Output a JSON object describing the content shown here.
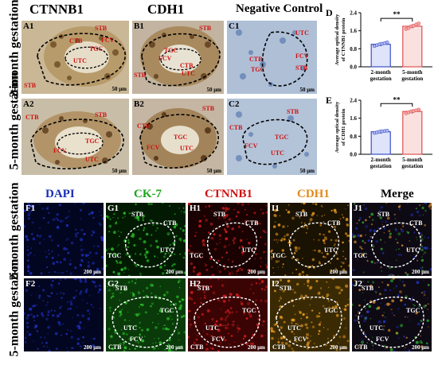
{
  "top_columns": [
    "CTNNB1",
    "CDH1",
    "Negative Control"
  ],
  "top_rows": [
    "2-month gestation",
    "5-month gestation"
  ],
  "top_panels": [
    {
      "id": "A1",
      "labels": [
        "STB",
        "FCV",
        "CTB",
        "TGC",
        "UTC",
        "STB"
      ],
      "scale": "50 μm"
    },
    {
      "id": "B1",
      "labels": [
        "STB",
        "TGC",
        "FCV",
        "CTB",
        "UTC",
        "STB"
      ],
      "scale": "50 μm"
    },
    {
      "id": "C1",
      "labels": [
        "UTC",
        "CTB",
        "TGC",
        "FCV",
        "STB"
      ],
      "scale": "50 μm"
    },
    {
      "id": "A2",
      "labels": [
        "STB",
        "CTB",
        "TGC",
        "FCV",
        "UTC"
      ],
      "scale": "50 μm"
    },
    {
      "id": "B2",
      "labels": [
        "STB",
        "CTB",
        "TGC",
        "FCV",
        "UTC"
      ],
      "scale": "50 μm"
    },
    {
      "id": "C2",
      "labels": [
        "STB",
        "CTB",
        "TGC",
        "FCV",
        "UTC"
      ],
      "scale": "50 μm"
    }
  ],
  "bottom_columns": [
    "DAPI",
    "CK-7",
    "CTNNB1",
    "CDH1",
    "Merge"
  ],
  "bottom_column_colors": [
    "#1a2fb5",
    "#1aa61a",
    "#d01010",
    "#e08a1a",
    "#000000"
  ],
  "bottom_rows": [
    "2-month gestation",
    "5-month gestation"
  ],
  "bottom_panels": [
    {
      "id": "F1",
      "labels": [],
      "scale": "200 μm"
    },
    {
      "id": "G1",
      "labels": [
        "STB",
        "CTB",
        "TGC",
        "UTC"
      ],
      "scale": "200 μm"
    },
    {
      "id": "H1",
      "labels": [
        "STB",
        "CTB",
        "TGC",
        "UTC"
      ],
      "scale": "200 μm"
    },
    {
      "id": "I1",
      "labels": [
        "STB",
        "CTB",
        "TGC",
        "UTC"
      ],
      "scale": "200 μm"
    },
    {
      "id": "J1",
      "labels": [
        "STB",
        "CTB",
        "TGC",
        "UTC"
      ],
      "scale": "200 μm"
    },
    {
      "id": "F2",
      "labels": [],
      "scale": "200 μm"
    },
    {
      "id": "G2",
      "labels": [
        "STB",
        "TGC",
        "UTC",
        "FCV",
        "CTB"
      ],
      "scale": "200 μm"
    },
    {
      "id": "H2",
      "labels": [
        "STB",
        "TGC",
        "UTC",
        "FCV",
        "CTB"
      ],
      "scale": "200 μm"
    },
    {
      "id": "I2",
      "labels": [
        "STB",
        "TGC",
        "UTC",
        "FCV",
        "CTB"
      ],
      "scale": "200 μm"
    },
    {
      "id": "J2",
      "labels": [
        "STB",
        "TGC",
        "UTC",
        "FCV",
        "CTB"
      ],
      "scale": "200 μm"
    }
  ],
  "chart_data": [
    {
      "letter": "D",
      "type": "bar",
      "ylabel": "Average optical density of CTNNB1 protein",
      "ylim": [
        0,
        2.4
      ],
      "yticks": [
        0,
        0.8,
        1.6,
        2.4
      ],
      "categories": [
        "2-month gestation",
        "5-month gestation"
      ],
      "values": [
        1.0,
        1.8
      ],
      "points": [
        [
          0.92,
          0.96,
          1.0,
          1.02,
          1.05,
          1.08
        ],
        [
          1.68,
          1.72,
          1.8,
          1.82,
          1.88,
          1.92
        ]
      ],
      "significance": "**",
      "colors": [
        "#3a50c8",
        "#e05050"
      ]
    },
    {
      "letter": "E",
      "type": "bar",
      "ylabel": "Average optical density of CDH1 protein",
      "ylim": [
        0,
        2.4
      ],
      "yticks": [
        0,
        0.8,
        1.6,
        2.4
      ],
      "categories": [
        "2-month gestation",
        "5-month gestation"
      ],
      "values": [
        1.0,
        1.9
      ],
      "points": [
        [
          0.95,
          0.97,
          1.0,
          1.02,
          1.03,
          1.05
        ],
        [
          1.82,
          1.86,
          1.9,
          1.92,
          1.95,
          1.98
        ]
      ],
      "significance": "**",
      "colors": [
        "#3a50c8",
        "#e05050"
      ]
    }
  ]
}
